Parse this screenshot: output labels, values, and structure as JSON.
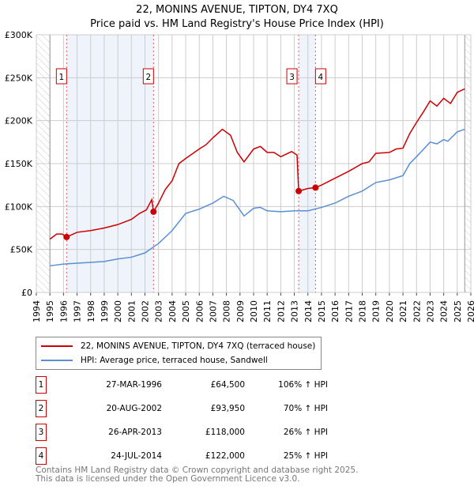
{
  "chart_data": {
    "type": "line",
    "title": "22, MONINS AVENUE, TIPTON, DY4 7XQ",
    "subtitle": "Price paid vs. HM Land Registry's House Price Index (HPI)",
    "xlim": [
      1994,
      2026
    ],
    "ylim": [
      0,
      300000
    ],
    "x_ticks": [
      "1994",
      "1995",
      "1996",
      "1997",
      "1998",
      "1999",
      "2000",
      "2001",
      "2002",
      "2003",
      "2004",
      "2005",
      "2006",
      "2007",
      "2008",
      "2009",
      "2010",
      "2011",
      "2012",
      "2013",
      "2014",
      "2015",
      "2016",
      "2017",
      "2018",
      "2019",
      "2020",
      "2021",
      "2022",
      "2023",
      "2024",
      "2025",
      "2026"
    ],
    "y_ticks": [
      {
        "v": 0,
        "label": "£0"
      },
      {
        "v": 50000,
        "label": "£50K"
      },
      {
        "v": 100000,
        "label": "£100K"
      },
      {
        "v": 150000,
        "label": "£150K"
      },
      {
        "v": 200000,
        "label": "£200K"
      },
      {
        "v": 250000,
        "label": "£250K"
      },
      {
        "v": 300000,
        "label": "£300K"
      }
    ],
    "grid": true,
    "shaded_periods": [
      [
        1996.23,
        2002.63
      ],
      [
        2013.32,
        2014.56
      ]
    ],
    "hatched_before": 1995,
    "hatched_after": 2025.55,
    "series": [
      {
        "name": "22, MONINS AVENUE, TIPTON, DY4 7XQ (terraced house)",
        "color": "#cc0000",
        "points": [
          [
            1995,
            62000
          ],
          [
            1995.5,
            68000
          ],
          [
            1995.9,
            68000
          ],
          [
            1996.23,
            64500
          ],
          [
            1997,
            70000
          ],
          [
            1998,
            72000
          ],
          [
            1999,
            75000
          ],
          [
            2000,
            79000
          ],
          [
            2001,
            85000
          ],
          [
            2001.6,
            92000
          ],
          [
            2002.1,
            96000
          ],
          [
            2002.5,
            108000
          ],
          [
            2002.63,
            93950
          ],
          [
            2003,
            104000
          ],
          [
            2003.5,
            120000
          ],
          [
            2004,
            130000
          ],
          [
            2004.5,
            150000
          ],
          [
            2005,
            156000
          ],
          [
            2006,
            167000
          ],
          [
            2006.5,
            172000
          ],
          [
            2007,
            180000
          ],
          [
            2007.7,
            190000
          ],
          [
            2008.3,
            183000
          ],
          [
            2008.8,
            163000
          ],
          [
            2009.3,
            152000
          ],
          [
            2010,
            167000
          ],
          [
            2010.5,
            170000
          ],
          [
            2011,
            163000
          ],
          [
            2011.5,
            163000
          ],
          [
            2012,
            158000
          ],
          [
            2012.8,
            164000
          ],
          [
            2013.2,
            160000
          ],
          [
            2013.32,
            118000
          ],
          [
            2014,
            121000
          ],
          [
            2014.56,
            122000
          ],
          [
            2015,
            125000
          ],
          [
            2016,
            133000
          ],
          [
            2017,
            141000
          ],
          [
            2018,
            150000
          ],
          [
            2018.5,
            152000
          ],
          [
            2019,
            162000
          ],
          [
            2020,
            163000
          ],
          [
            2020.5,
            167000
          ],
          [
            2021,
            168000
          ],
          [
            2021.5,
            185000
          ],
          [
            2022,
            198000
          ],
          [
            2022.5,
            210000
          ],
          [
            2023,
            223000
          ],
          [
            2023.5,
            217000
          ],
          [
            2024,
            226000
          ],
          [
            2024.5,
            220000
          ],
          [
            2025,
            233000
          ],
          [
            2025.55,
            237000
          ]
        ]
      },
      {
        "name": "HPI: Average price, terraced house, Sandwell",
        "color": "#5b8fd4",
        "points": [
          [
            1995,
            31000
          ],
          [
            1996,
            33000
          ],
          [
            1997,
            34000
          ],
          [
            1998,
            35000
          ],
          [
            1999,
            36000
          ],
          [
            2000,
            39000
          ],
          [
            2001,
            41000
          ],
          [
            2002,
            46000
          ],
          [
            2003,
            57000
          ],
          [
            2004,
            72000
          ],
          [
            2005,
            92000
          ],
          [
            2006,
            97000
          ],
          [
            2007,
            104000
          ],
          [
            2007.8,
            112000
          ],
          [
            2008.5,
            107000
          ],
          [
            2009.3,
            89000
          ],
          [
            2010,
            98000
          ],
          [
            2010.5,
            99000
          ],
          [
            2011,
            95000
          ],
          [
            2012,
            94000
          ],
          [
            2013,
            95000
          ],
          [
            2014,
            95000
          ],
          [
            2015,
            99000
          ],
          [
            2016,
            104000
          ],
          [
            2017,
            112000
          ],
          [
            2018,
            118000
          ],
          [
            2019,
            128000
          ],
          [
            2020,
            131000
          ],
          [
            2021,
            136000
          ],
          [
            2021.5,
            150000
          ],
          [
            2022,
            158000
          ],
          [
            2023,
            175000
          ],
          [
            2023.5,
            173000
          ],
          [
            2024,
            178000
          ],
          [
            2024.3,
            176000
          ],
          [
            2025,
            187000
          ],
          [
            2025.55,
            190000
          ]
        ]
      }
    ],
    "sales": [
      {
        "n": "1",
        "x": 1996.23,
        "y": 64500
      },
      {
        "n": "2",
        "x": 2002.63,
        "y": 93950
      },
      {
        "n": "3",
        "x": 2013.32,
        "y": 118000
      },
      {
        "n": "4",
        "x": 2014.56,
        "y": 122000
      }
    ]
  },
  "legend": {
    "property": "22, MONINS AVENUE, TIPTON, DY4 7XQ (terraced house)",
    "hpi": "HPI: Average price, terraced house, Sandwell"
  },
  "sales_table": [
    {
      "n": "1",
      "date": "27-MAR-1996",
      "price": "£64,500",
      "hpi": "106% ↑ HPI"
    },
    {
      "n": "2",
      "date": "20-AUG-2002",
      "price": "£93,950",
      "hpi": "70% ↑ HPI"
    },
    {
      "n": "3",
      "date": "26-APR-2013",
      "price": "£118,000",
      "hpi": "26% ↑ HPI"
    },
    {
      "n": "4",
      "date": "24-JUL-2014",
      "price": "£122,000",
      "hpi": "25% ↑ HPI"
    }
  ],
  "footer": {
    "line1": "Contains HM Land Registry data © Crown copyright and database right 2025.",
    "line2": "This data is licensed under the Open Government Licence v3.0."
  }
}
